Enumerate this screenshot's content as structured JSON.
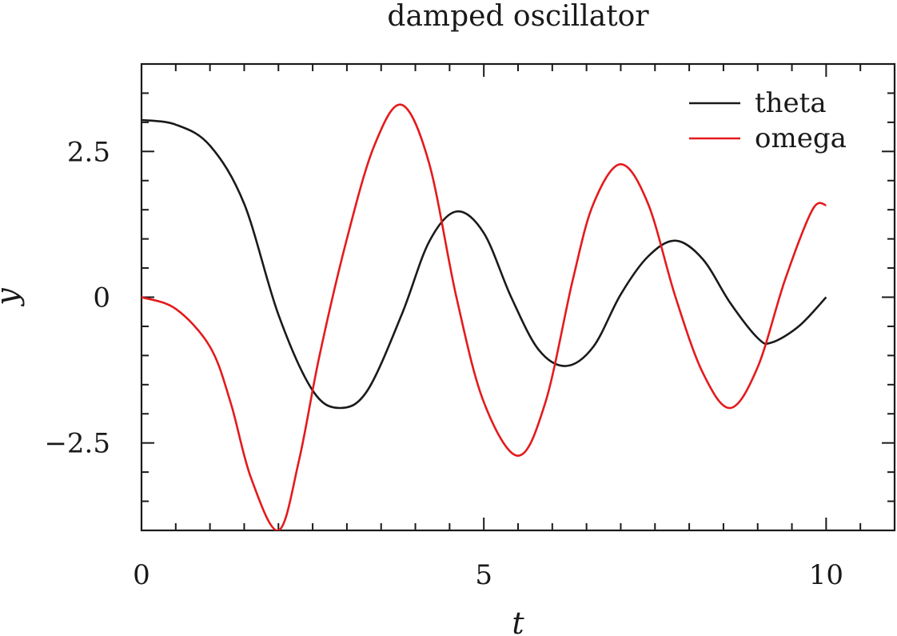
{
  "chart_data": {
    "type": "line",
    "title": "damped oscillator",
    "xlabel": "t",
    "ylabel": "y",
    "xlim": [
      0,
      11
    ],
    "ylim": [
      -4,
      4
    ],
    "x_ticks": [
      0,
      5,
      10
    ],
    "x_tick_labels": [
      "0",
      "5",
      "10"
    ],
    "y_ticks": [
      2.5,
      0,
      -2.5
    ],
    "y_tick_labels": [
      "2.5",
      "0",
      "−2.5"
    ],
    "x_minor_step": 0.5,
    "y_minor_step": 0.5,
    "grid": false,
    "legend_position": "top-right",
    "series": [
      {
        "name": "theta",
        "color": "#1a1a1a",
        "x": [
          0,
          0.5,
          1.0,
          1.5,
          2.0,
          2.5,
          2.9,
          3.3,
          3.8,
          4.2,
          4.6,
          5.0,
          5.4,
          5.8,
          6.2,
          6.6,
          7.0,
          7.4,
          7.8,
          8.2,
          8.6,
          9.0,
          9.2,
          9.6,
          10.0
        ],
        "values": [
          3.04,
          2.96,
          2.6,
          1.6,
          -0.3,
          -1.6,
          -1.9,
          -1.6,
          -0.3,
          0.95,
          1.47,
          1.1,
          0.0,
          -0.9,
          -1.18,
          -0.85,
          0.05,
          0.7,
          0.97,
          0.65,
          -0.1,
          -0.7,
          -0.78,
          -0.5,
          0.0
        ]
      },
      {
        "name": "omega",
        "color": "#e41a1c",
        "x": [
          0,
          0.5,
          1.0,
          1.3,
          1.6,
          2.0,
          2.3,
          2.6,
          3.0,
          3.4,
          3.8,
          4.2,
          4.6,
          5.0,
          5.5,
          5.9,
          6.3,
          6.6,
          7.0,
          7.4,
          7.8,
          8.2,
          8.6,
          9.0,
          9.4,
          9.8,
          10.0
        ],
        "values": [
          0.0,
          -0.2,
          -0.85,
          -1.8,
          -3.1,
          -4.0,
          -2.8,
          -1.0,
          1.0,
          2.6,
          3.3,
          2.3,
          0.0,
          -1.8,
          -2.72,
          -1.8,
          0.3,
          1.6,
          2.28,
          1.6,
          0.0,
          -1.3,
          -1.9,
          -1.2,
          0.3,
          1.5,
          1.58
        ]
      }
    ]
  }
}
